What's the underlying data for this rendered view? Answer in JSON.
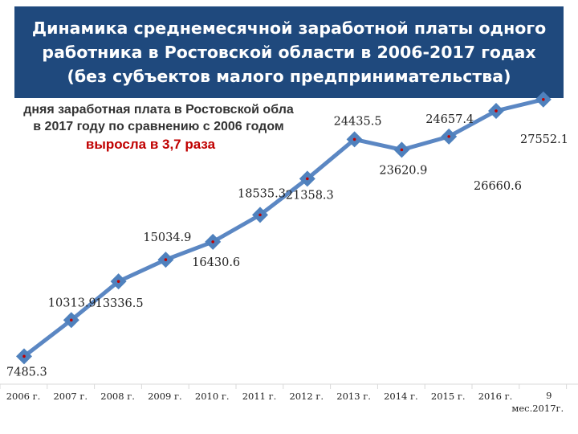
{
  "title": "Динамика среднемесячной заработной платы одного работника в Ростовской области в 2006-2017 годах (без субъектов малого предпринимательства)",
  "note": {
    "line1": "дняя заработная плата в Ростовской обла",
    "line2": "в 2017 году по сравнению с 2006 годом",
    "line3": "выросла в 3,7 раза"
  },
  "colors": {
    "title_bg": "#1f497d",
    "line": "#5b87c3",
    "marker": "#4f81bd",
    "dot": "#c00000",
    "highlight_text": "#c00000"
  },
  "chart_data": {
    "type": "line",
    "categories": [
      "2006 г.",
      "2007 г.",
      "2008 г.",
      "2009 г.",
      "2010 г.",
      "2011 г.",
      "2012 г.",
      "2013 г.",
      "2014 г.",
      "2015 г.",
      "2016 г.",
      "9 мес.2017г."
    ],
    "values": [
      7485.3,
      10313.9,
      13336.5,
      15034.9,
      16430.6,
      18535.3,
      21358.3,
      24435.5,
      23620.9,
      24657.4,
      26660.6,
      27552.1
    ],
    "value_labels": [
      "7485.3",
      "10313.9",
      "13336.5",
      "15034.9",
      "16430.6",
      "18535.3",
      "21358.3",
      "24435.5",
      "23620.9",
      "24657.4",
      "26660.6",
      "27552.1"
    ],
    "ylim": [
      6000,
      33000
    ],
    "grid": false,
    "legend": "none",
    "data_labels": true
  }
}
